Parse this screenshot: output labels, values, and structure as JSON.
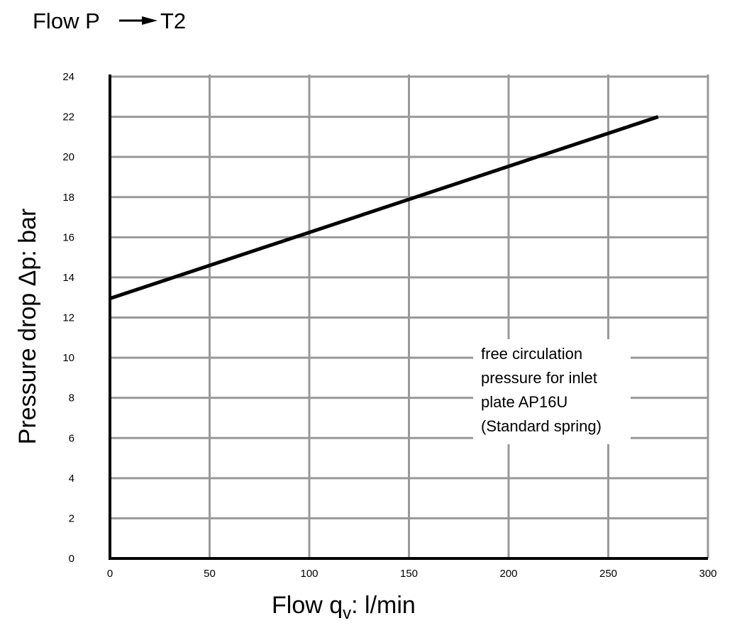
{
  "chart_data": {
    "type": "line",
    "title_prefix": "Flow P",
    "title_suffix": "T2",
    "xlabel_main": "Flow q",
    "xlabel_sub": "v",
    "xlabel_unit": ": l/min",
    "ylabel": "Pressure drop Δp:  bar",
    "xlim": [
      0,
      300
    ],
    "ylim": [
      0,
      24
    ],
    "x_ticks": [
      "0",
      "50",
      "100",
      "150",
      "200",
      "250",
      "300"
    ],
    "y_ticks": [
      "0",
      "2",
      "4",
      "6",
      "8",
      "10",
      "12",
      "14",
      "16",
      "18",
      "20",
      "22",
      "24"
    ],
    "grid": true,
    "series": [
      {
        "x": [
          0,
          275
        ],
        "y": [
          12.95,
          22.0
        ]
      }
    ],
    "annotation": [
      "free circulation",
      "pressure for inlet",
      "plate AP16U",
      "(Standard spring)"
    ],
    "colors": {
      "grid": "#999999",
      "line": "#000000",
      "axes": "#000000"
    }
  }
}
